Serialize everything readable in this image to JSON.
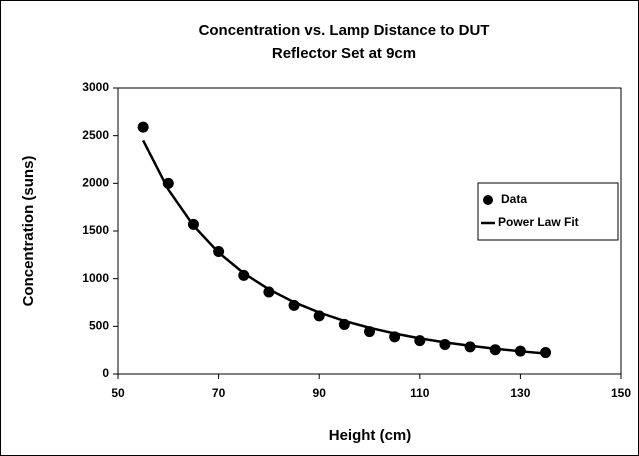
{
  "chart_data": {
    "type": "scatter",
    "title": [
      "Concentration vs. Lamp Distance to DUT",
      "Reflector Set at 9cm"
    ],
    "x_label": "Height (cm)",
    "y_label": "Concentration (suns)",
    "x": [
      55,
      60,
      65,
      70,
      75,
      80,
      85,
      90,
      95,
      100,
      105,
      110,
      115,
      120,
      125,
      130,
      135
    ],
    "series": [
      {
        "name": "Data",
        "mode": "markers",
        "color": "#000000",
        "values": [
          2590,
          2000,
          1570,
          1285,
          1035,
          860,
          720,
          610,
          520,
          445,
          390,
          350,
          310,
          285,
          255,
          240,
          225
        ]
      },
      {
        "name": "Power Law Fit",
        "mode": "lines",
        "color": "#000000",
        "values": [
          2450,
          1935,
          1557,
          1274,
          1057,
          888,
          753,
          645,
          557,
          485,
          425,
          374,
          332,
          296,
          265,
          238,
          215
        ]
      }
    ],
    "xlim": [
      50,
      150
    ],
    "xticks": [
      50,
      70,
      90,
      110,
      130,
      150
    ],
    "ylim": [
      0,
      3000
    ],
    "yticks": [
      0,
      500,
      1000,
      1500,
      2000,
      2500,
      3000
    ],
    "grid": false,
    "legend": "right"
  }
}
